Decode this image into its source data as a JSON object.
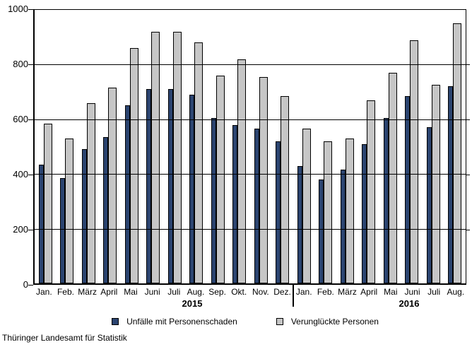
{
  "chart_data": {
    "type": "bar",
    "title": "",
    "categories": [
      "Jan.",
      "Feb.",
      "März",
      "April",
      "Mai",
      "Juni",
      "Juli",
      "Aug.",
      "Sep.",
      "Okt.",
      "Nov.",
      "Dez.",
      "Jan.",
      "Feb.",
      "März",
      "April",
      "Mai",
      "Juni",
      "Juli",
      "Aug."
    ],
    "year_groups": [
      {
        "label": "2015",
        "months": 12
      },
      {
        "label": "2016",
        "months": 8
      }
    ],
    "series": [
      {
        "name": "Unfälle mit Personenschaden",
        "color": "#2b4470",
        "values": [
          435,
          385,
          490,
          535,
          650,
          710,
          710,
          690,
          605,
          580,
          565,
          520,
          430,
          380,
          415,
          510,
          605,
          685,
          570,
          720
        ]
      },
      {
        "name": "Verunglückte Personen",
        "color": "#c6c6c6",
        "values": [
          585,
          530,
          660,
          715,
          860,
          920,
          920,
          880,
          760,
          820,
          755,
          685,
          565,
          520,
          530,
          670,
          770,
          890,
          725,
          950
        ]
      }
    ],
    "ylim": [
      0,
      1000
    ],
    "yticks": [
      0,
      200,
      400,
      600,
      800,
      1000
    ],
    "grid": true,
    "legend_position": "bottom",
    "axis_color": "#000000"
  },
  "footer": {
    "source": "Thüringer Landesamt für Statistik"
  }
}
